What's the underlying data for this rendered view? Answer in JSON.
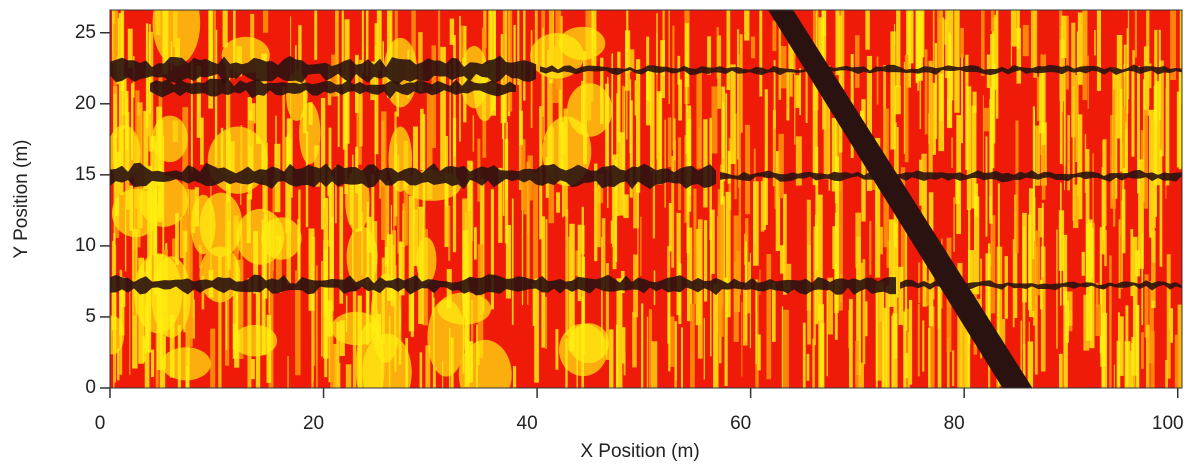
{
  "chart_data": {
    "type": "heatmap",
    "xlabel": "X Position (m)",
    "ylabel": "Y Position (m)",
    "xlim": [
      0,
      100.4
    ],
    "ylim": [
      0,
      26.6
    ],
    "xticks": [
      0,
      20,
      40,
      60,
      80,
      100
    ],
    "yticks": [
      0,
      5,
      10,
      15,
      20,
      25
    ]
  }
}
